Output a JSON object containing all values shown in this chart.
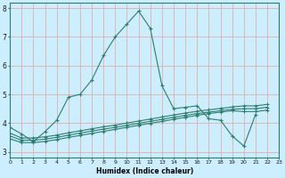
{
  "xlabel": "Humidex (Indice chaleur)",
  "bg_color": "#cceeff",
  "grid_color": "#c8d8d8",
  "line_color": "#2e7d6e",
  "xlim": [
    0,
    23
  ],
  "ylim": [
    2.8,
    8.2
  ],
  "xticks": [
    0,
    1,
    2,
    3,
    4,
    5,
    6,
    7,
    8,
    9,
    10,
    11,
    12,
    13,
    14,
    15,
    16,
    17,
    18,
    19,
    20,
    21,
    22,
    23
  ],
  "yticks": [
    3,
    4,
    5,
    6,
    7,
    8
  ],
  "line1_x": [
    0,
    1,
    2,
    3,
    4,
    5,
    6,
    7,
    8,
    9,
    10,
    11,
    12,
    13,
    14,
    15,
    16,
    17,
    18,
    19,
    20,
    21,
    22,
    23
  ],
  "line1_y": [
    3.85,
    3.62,
    3.35,
    3.7,
    4.1,
    4.9,
    5.0,
    5.5,
    6.35,
    7.0,
    7.45,
    7.9,
    7.3,
    5.3,
    4.5,
    4.55,
    4.6,
    4.15,
    4.1,
    3.55,
    3.2,
    4.3,
    null,
    null
  ],
  "line2_x": [
    0,
    1,
    2,
    3,
    4,
    5,
    6,
    7,
    8,
    9,
    10,
    11,
    12,
    13,
    14,
    15,
    16,
    17,
    18,
    19,
    20,
    21,
    22,
    23
  ],
  "line2_y": [
    3.45,
    3.32,
    3.32,
    3.36,
    3.42,
    3.5,
    3.57,
    3.64,
    3.71,
    3.78,
    3.85,
    3.92,
    3.99,
    4.06,
    4.13,
    4.2,
    4.27,
    4.33,
    4.38,
    4.43,
    4.4,
    4.4,
    4.45,
    null
  ],
  "line3_x": [
    0,
    1,
    2,
    3,
    4,
    5,
    6,
    7,
    8,
    9,
    10,
    11,
    12,
    13,
    14,
    15,
    16,
    17,
    18,
    19,
    20,
    21,
    22,
    23
  ],
  "line3_y": [
    3.55,
    3.4,
    3.4,
    3.44,
    3.5,
    3.58,
    3.65,
    3.72,
    3.79,
    3.85,
    3.92,
    3.99,
    4.06,
    4.13,
    4.2,
    4.27,
    4.33,
    4.38,
    4.43,
    4.48,
    4.5,
    4.5,
    4.55,
    null
  ],
  "line4_x": [
    0,
    1,
    2,
    3,
    4,
    5,
    6,
    7,
    8,
    9,
    10,
    11,
    12,
    13,
    14,
    15,
    16,
    17,
    18,
    19,
    20,
    21,
    22,
    23
  ],
  "line4_y": [
    3.65,
    3.48,
    3.48,
    3.52,
    3.58,
    3.66,
    3.73,
    3.8,
    3.87,
    3.93,
    4.0,
    4.07,
    4.14,
    4.21,
    4.28,
    4.35,
    4.41,
    4.46,
    4.51,
    4.56,
    4.6,
    4.6,
    4.65,
    null
  ]
}
